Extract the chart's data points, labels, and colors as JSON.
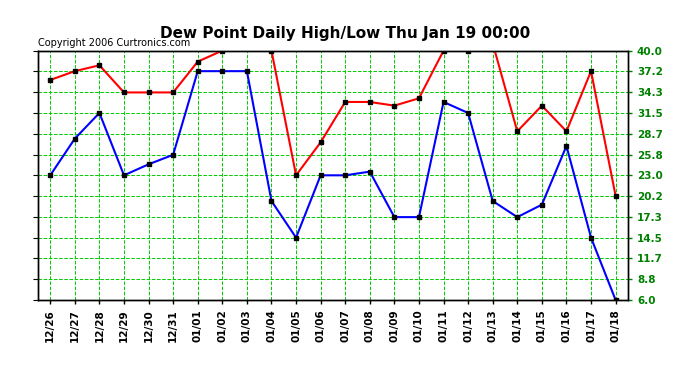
{
  "title": "Dew Point Daily High/Low Thu Jan 19 00:00",
  "copyright": "Copyright 2006 Curtronics.com",
  "x_labels": [
    "12/26",
    "12/27",
    "12/28",
    "12/29",
    "12/30",
    "12/31",
    "01/01",
    "01/02",
    "01/03",
    "01/04",
    "01/05",
    "01/06",
    "01/07",
    "01/08",
    "01/09",
    "01/10",
    "01/11",
    "01/12",
    "01/13",
    "01/14",
    "01/15",
    "01/16",
    "01/17",
    "01/18"
  ],
  "high_values": [
    36.0,
    37.2,
    38.0,
    34.3,
    34.3,
    34.3,
    38.5,
    40.0,
    41.5,
    40.0,
    23.0,
    27.5,
    33.0,
    33.0,
    32.5,
    33.5,
    40.0,
    40.0,
    41.0,
    29.0,
    32.5,
    29.0,
    37.2,
    20.2
  ],
  "low_values": [
    23.0,
    28.0,
    31.5,
    23.0,
    24.5,
    25.8,
    37.2,
    37.2,
    37.2,
    19.5,
    14.5,
    23.0,
    23.0,
    23.5,
    17.3,
    17.3,
    33.0,
    31.5,
    19.5,
    17.3,
    19.0,
    27.0,
    14.5,
    6.0
  ],
  "high_color": "#ff0000",
  "low_color": "#0000ff",
  "grid_color": "#00cc00",
  "background_color": "#ffffff",
  "outer_background": "#ffffff",
  "border_color": "#000000",
  "yticks": [
    6.0,
    8.8,
    11.7,
    14.5,
    17.3,
    20.2,
    23.0,
    25.8,
    28.7,
    31.5,
    34.3,
    37.2,
    40.0
  ],
  "ymin": 6.0,
  "ymax": 40.0,
  "title_fontsize": 11,
  "copyright_fontsize": 7,
  "tick_fontsize": 7.5,
  "marker": "s",
  "marker_size": 3,
  "marker_color": "#000000",
  "line_width": 1.5
}
